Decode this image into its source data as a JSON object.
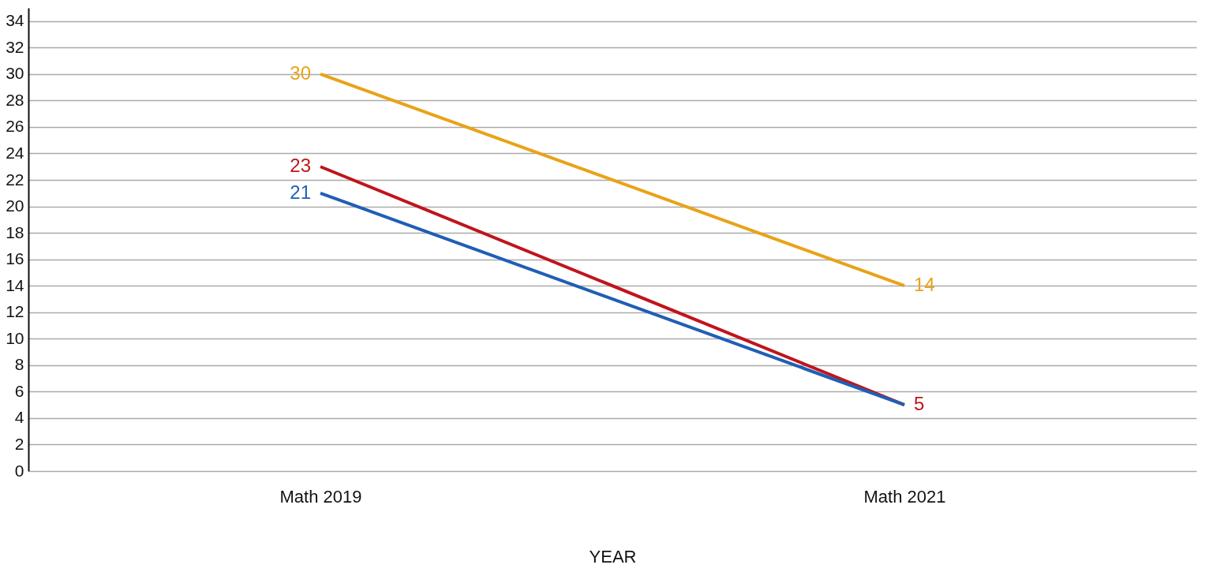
{
  "chart_data": {
    "type": "line",
    "xlabel": "YEAR",
    "categories": [
      "Math 2019",
      "Math 2021"
    ],
    "series": [
      {
        "color": "#e8a317",
        "values": [
          30,
          14
        ],
        "value_labels": [
          "30",
          "14"
        ]
      },
      {
        "color": "#c0141c",
        "values": [
          23,
          5
        ],
        "value_labels": [
          "23",
          "5"
        ]
      },
      {
        "color": "#1f5fb5",
        "values": [
          21,
          5
        ],
        "value_labels": [
          "21",
          null
        ]
      }
    ],
    "ylim": [
      0,
      35
    ],
    "yticks": [
      0,
      2,
      4,
      6,
      8,
      10,
      12,
      14,
      16,
      18,
      20,
      22,
      24,
      26,
      28,
      30,
      32,
      34
    ],
    "grid": "y",
    "legend": false,
    "marker": "none",
    "line_style": "solid"
  }
}
